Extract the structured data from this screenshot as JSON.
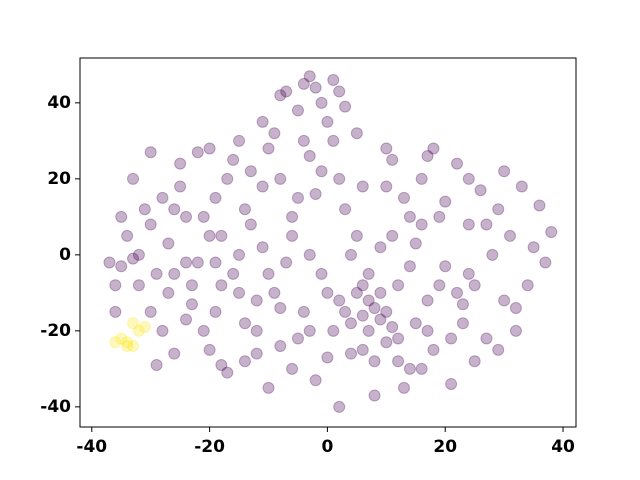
{
  "chart_data": {
    "type": "scatter",
    "xlim": [
      -42,
      42.2
    ],
    "ylim": [
      -45.3,
      51.8
    ],
    "xticks": [
      -40,
      -20,
      0,
      20,
      40
    ],
    "yticks": [
      -40,
      -20,
      0,
      20,
      40
    ],
    "grid": false,
    "alpha": 0.3,
    "series": [
      {
        "color": "#440154",
        "x": [
          -37,
          -36,
          -35,
          -34,
          -33,
          -32,
          -33,
          -31,
          -30,
          -30,
          -29,
          -28,
          -27,
          -26,
          -25,
          -24,
          -23,
          -22,
          -21,
          -20,
          -19,
          -18,
          -17,
          -16,
          -15,
          -14,
          -13,
          -12,
          -11,
          -10,
          -9,
          -8,
          -7,
          -6,
          -5,
          -4,
          -3,
          -2,
          -1,
          0,
          1,
          2,
          3,
          4,
          5,
          6,
          7,
          8,
          9,
          10,
          11,
          12,
          13,
          14,
          15,
          16,
          17,
          18,
          19,
          20,
          21,
          22,
          23,
          24,
          25,
          26,
          27,
          28,
          29,
          30,
          31,
          32,
          33,
          34,
          35,
          36,
          37,
          38,
          30,
          25,
          -3,
          -2,
          -1,
          1,
          2,
          -5,
          -8,
          3,
          0,
          -4,
          5,
          6,
          7,
          8,
          9,
          10,
          11,
          12,
          4,
          3,
          -15,
          -18,
          -20,
          -10,
          -12,
          -22,
          -25,
          -27,
          -5,
          -7,
          15,
          18,
          20,
          22,
          24,
          16,
          13,
          8,
          0,
          -6,
          -10,
          -14,
          -17,
          -23,
          -28,
          -32,
          -35,
          -36,
          -24,
          -19,
          -13,
          -8,
          -2,
          2,
          6,
          10,
          14,
          19,
          23,
          27,
          -30,
          -26,
          -21,
          -16,
          -11,
          -6,
          -1,
          4,
          9,
          14,
          -29,
          -24,
          -19,
          -14,
          -9,
          -4,
          1,
          6,
          11,
          16,
          -20,
          -15,
          -11,
          -3,
          5,
          10,
          17,
          24,
          29,
          32,
          -26,
          -18,
          -12,
          -8,
          -3,
          2,
          7,
          12,
          17,
          21
        ],
        "values": [
          -2,
          -8,
          10,
          5,
          -1,
          -8,
          20,
          12,
          27,
          -15,
          -29,
          15,
          3,
          -5,
          24,
          10,
          -13,
          27,
          -20,
          5,
          15,
          -8,
          -31,
          25,
          0,
          -18,
          8,
          -26,
          18,
          -5,
          32,
          -14,
          43,
          10,
          -22,
          45,
          0,
          -33,
          22,
          -10,
          30,
          -40,
          12,
          -18,
          5,
          -16,
          -20,
          -14,
          -17,
          -23,
          25,
          -8,
          15,
          -30,
          3,
          20,
          -12,
          -25,
          10,
          -3,
          -34,
          24,
          -18,
          8,
          -8,
          17,
          -22,
          0,
          12,
          -12,
          5,
          -20,
          18,
          -8,
          2,
          13,
          -2,
          6,
          22,
          -28,
          47,
          44,
          40,
          46,
          43,
          38,
          42,
          39,
          35,
          30,
          -10,
          -25,
          -5,
          -28,
          -10,
          -15,
          -19,
          -22,
          -26,
          -15,
          -10,
          5,
          -25,
          28,
          -12,
          -2,
          18,
          -10,
          15,
          -2,
          -18,
          28,
          14,
          -10,
          -5,
          -30,
          -35,
          -37,
          -27,
          -30,
          -35,
          -28,
          20,
          -8,
          -20,
          0,
          -3,
          -15,
          -17,
          -15,
          22,
          20,
          16,
          20,
          18,
          18,
          10,
          -8,
          -13,
          8,
          8,
          12,
          10,
          -5,
          2,
          5,
          -5,
          0,
          2,
          -3,
          -5,
          -2,
          -2,
          12,
          -10,
          -15,
          -20,
          -8,
          5,
          8,
          28,
          30,
          35,
          26,
          32,
          28,
          26,
          20,
          -25,
          -14,
          -26,
          -29,
          -20,
          -24,
          -20,
          -12,
          -12,
          -28,
          -20,
          -22
        ]
      },
      {
        "color": "#fde725",
        "x": [
          -36,
          -35,
          -34,
          -33,
          -32,
          -33,
          -34,
          -31
        ],
        "values": [
          -23,
          -22,
          -24,
          -18,
          -20,
          -24,
          -23,
          -19
        ]
      }
    ]
  }
}
